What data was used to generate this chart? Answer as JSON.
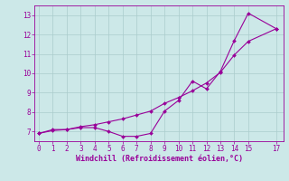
{
  "line1_x": [
    0,
    1,
    2,
    3,
    4,
    5,
    6,
    7,
    8,
    9,
    10,
    11,
    12,
    13,
    14,
    15,
    17
  ],
  "line1_y": [
    6.9,
    7.1,
    7.1,
    7.2,
    7.2,
    7.0,
    6.75,
    6.75,
    6.9,
    8.05,
    8.6,
    9.6,
    9.2,
    10.1,
    11.7,
    13.1,
    12.3
  ],
  "line2_x": [
    0,
    1,
    2,
    3,
    4,
    5,
    6,
    7,
    8,
    9,
    10,
    11,
    12,
    13,
    14,
    15,
    17
  ],
  "line2_y": [
    6.9,
    7.05,
    7.1,
    7.25,
    7.35,
    7.5,
    7.65,
    7.85,
    8.05,
    8.45,
    8.75,
    9.1,
    9.5,
    10.05,
    10.95,
    11.65,
    12.3
  ],
  "line_color": "#990099",
  "marker": "D",
  "marker_size": 2.0,
  "linewidth": 0.8,
  "xlim": [
    -0.3,
    17.5
  ],
  "ylim": [
    6.5,
    13.5
  ],
  "xticks": [
    0,
    1,
    2,
    3,
    4,
    5,
    6,
    7,
    8,
    9,
    10,
    11,
    12,
    13,
    14,
    15,
    17
  ],
  "yticks": [
    7,
    8,
    9,
    10,
    11,
    12,
    13
  ],
  "xlabel": "Windchill (Refroidissement éolien,°C)",
  "background_color": "#cce8e8",
  "grid_color": "#aacccc",
  "tick_fontsize": 5.5,
  "xlabel_fontsize": 6.0
}
